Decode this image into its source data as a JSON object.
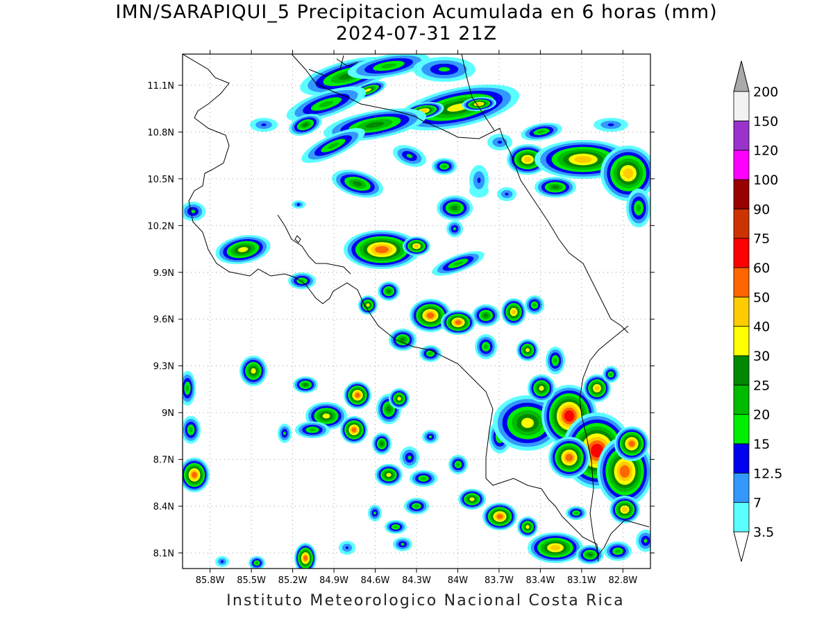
{
  "title": {
    "line1": "IMN/SARAPIQUI_5 Precipitacion Acumulada en 6 horas (mm)",
    "line2": "2024-07-31 21Z"
  },
  "credit": "Instituto Meteorologico Nacional Costa Rica",
  "map": {
    "lon_range": [
      -86.0,
      -82.6
    ],
    "lat_range": [
      8.0,
      11.3
    ],
    "lat_ticks": [
      "11.1N",
      "10.8N",
      "10.5N",
      "10.2N",
      "9.9N",
      "9.6N",
      "9.3N",
      "9N",
      "8.7N",
      "8.4N",
      "8.1N"
    ],
    "lon_ticks": [
      "85.8W",
      "85.5W",
      "85.2W",
      "84.9W",
      "84.6W",
      "84.3W",
      "84W",
      "83.7W",
      "83.4W",
      "83.1W",
      "82.8W"
    ],
    "grid": true
  },
  "colorbar": {
    "labels": [
      "3.5",
      "7",
      "12.5",
      "15",
      "20",
      "25",
      "30",
      "40",
      "50",
      "60",
      "75",
      "90",
      "100",
      "120",
      "150",
      "200"
    ],
    "colors": [
      "#5cffff",
      "#3399ff",
      "#0000ee",
      "#00ee00",
      "#00bb00",
      "#008800",
      "#ffff00",
      "#ffcc00",
      "#ff6600",
      "#ff0000",
      "#cc3300",
      "#990000",
      "#ff00ff",
      "#9933cc",
      "#f2f2f2"
    ],
    "under_color": "#ffffff",
    "over_color": "#aaaaaa",
    "units": "mm"
  }
}
